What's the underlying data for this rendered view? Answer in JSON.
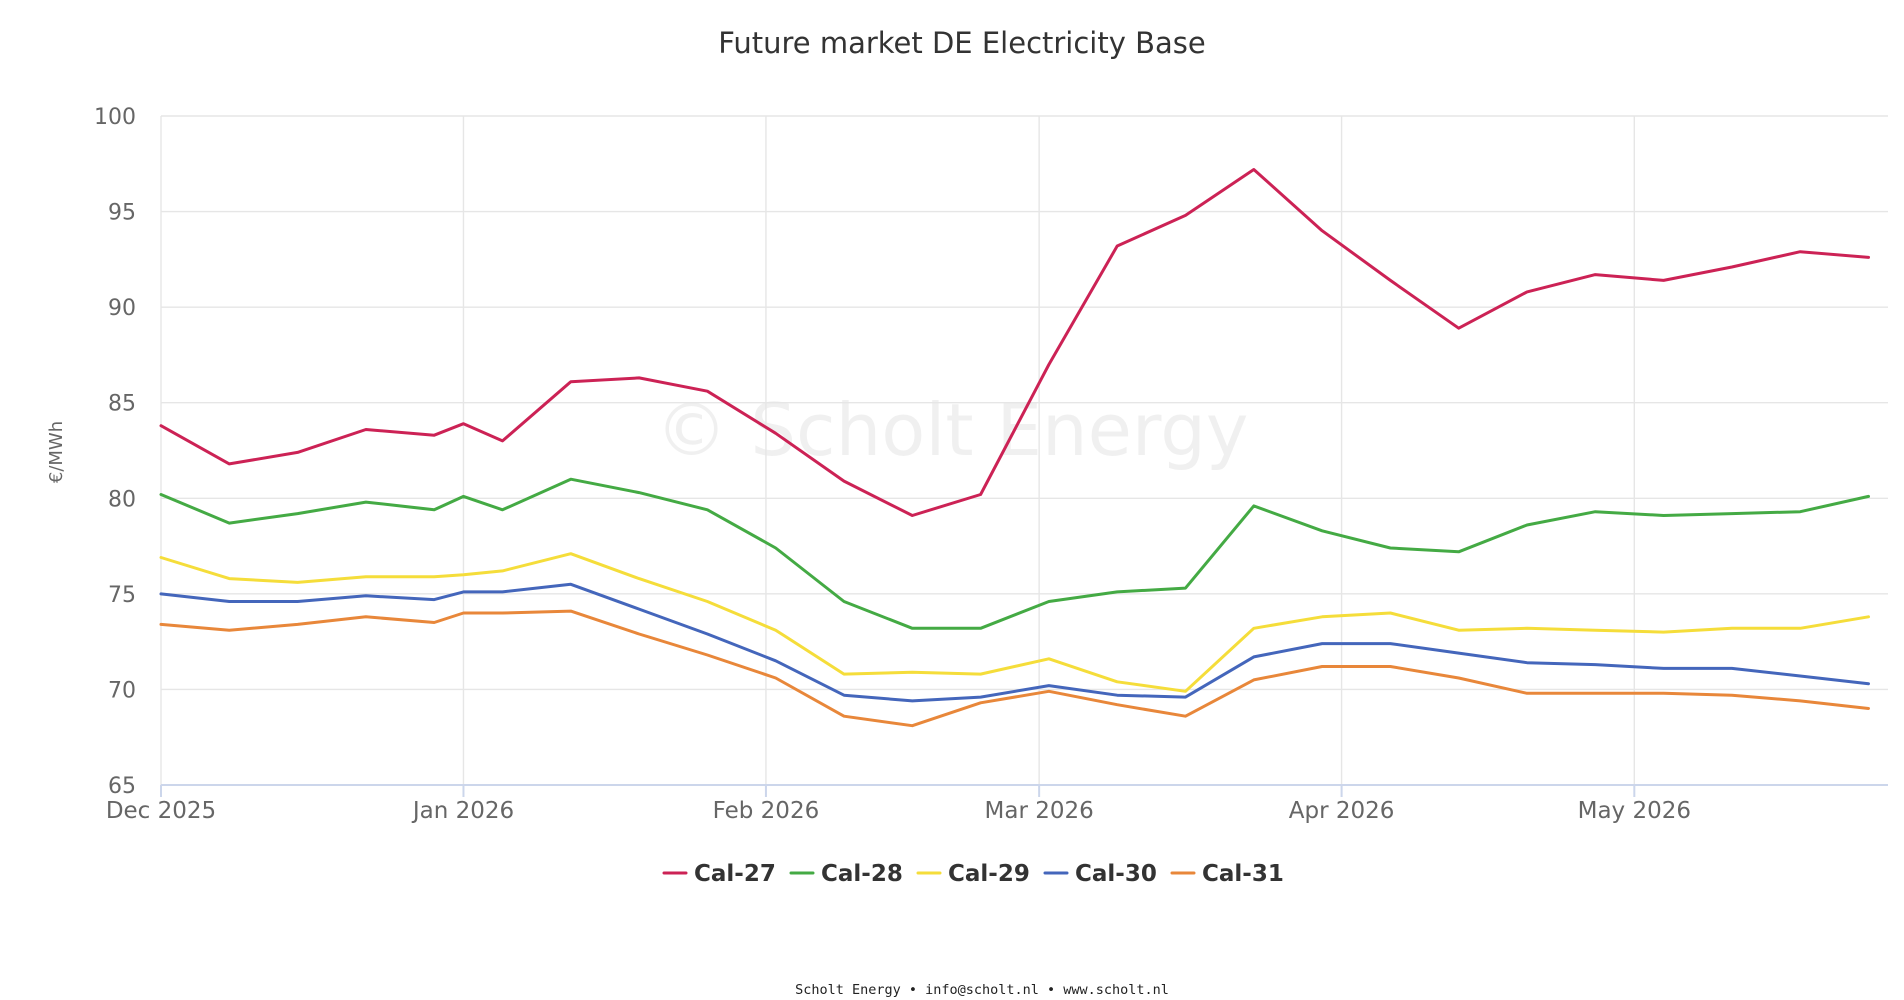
{
  "chart_data": {
    "type": "line",
    "title": "Future market DE Electricity Base",
    "ylabel": "€/MWh",
    "xlabel": "",
    "ylim": [
      65,
      100
    ],
    "yticks": [
      "65",
      "70",
      "75",
      "80",
      "85",
      "90",
      "95",
      "100"
    ],
    "xlim": [
      "2025-12-01",
      "2026-05-27"
    ],
    "xticks": [
      {
        "date": "2025-12-01",
        "label": "Dec 2025"
      },
      {
        "date": "2026-01-01",
        "label": "Jan 2026"
      },
      {
        "date": "2026-02-01",
        "label": "Feb 2026"
      },
      {
        "date": "2026-03-01",
        "label": "Mar 2026"
      },
      {
        "date": "2026-04-01",
        "label": "Apr 2026"
      },
      {
        "date": "2026-05-01",
        "label": "May 2026"
      }
    ],
    "grid": true,
    "legend_position": "bottom-center",
    "watermark": "© Scholt Energy",
    "x": [
      "2025-12-01",
      "2025-12-08",
      "2025-12-15",
      "2025-12-22",
      "2025-12-29",
      "2026-01-01",
      "2026-01-05",
      "2026-01-12",
      "2026-01-19",
      "2026-01-26",
      "2026-02-02",
      "2026-02-09",
      "2026-02-16",
      "2026-02-23",
      "2026-03-02",
      "2026-03-09",
      "2026-03-16",
      "2026-03-23",
      "2026-03-30",
      "2026-04-06",
      "2026-04-13",
      "2026-04-20",
      "2026-04-27",
      "2026-05-04",
      "2026-05-11",
      "2026-05-18",
      "2026-05-25"
    ],
    "series": [
      {
        "name": "Cal-27",
        "color": "#cc2255",
        "values": [
          83.8,
          81.8,
          82.4,
          83.6,
          83.3,
          83.9,
          83.0,
          86.1,
          86.3,
          85.6,
          83.4,
          80.9,
          79.1,
          80.2,
          87.0,
          93.2,
          94.8,
          97.2,
          94.0,
          91.4,
          88.9,
          90.8,
          91.7,
          91.4,
          92.1,
          92.9,
          92.6
        ]
      },
      {
        "name": "Cal-28",
        "color": "#44aa44",
        "values": [
          80.2,
          78.7,
          79.2,
          79.8,
          79.4,
          80.1,
          79.4,
          81.0,
          80.3,
          79.4,
          77.4,
          74.6,
          73.2,
          73.2,
          74.6,
          75.1,
          75.3,
          79.6,
          78.3,
          77.4,
          77.2,
          78.6,
          79.3,
          79.1,
          79.2,
          79.3,
          80.1
        ]
      },
      {
        "name": "Cal-29",
        "color": "#f5dd3a",
        "values": [
          76.9,
          75.8,
          75.6,
          75.9,
          75.9,
          76.0,
          76.2,
          77.1,
          75.8,
          74.6,
          73.1,
          70.8,
          70.9,
          70.8,
          71.6,
          70.4,
          69.9,
          73.2,
          73.8,
          74.0,
          73.1,
          73.2,
          73.1,
          73.0,
          73.2,
          73.2,
          73.8
        ]
      },
      {
        "name": "Cal-30",
        "color": "#4466bb",
        "values": [
          75.0,
          74.6,
          74.6,
          74.9,
          74.7,
          75.1,
          75.1,
          75.5,
          74.2,
          72.9,
          71.5,
          69.7,
          69.4,
          69.6,
          70.2,
          69.7,
          69.6,
          71.7,
          72.4,
          72.4,
          71.9,
          71.4,
          71.3,
          71.1,
          71.1,
          70.7,
          70.3
        ]
      },
      {
        "name": "Cal-31",
        "color": "#e8873a",
        "values": [
          73.4,
          73.1,
          73.4,
          73.8,
          73.5,
          74.0,
          74.0,
          74.1,
          72.9,
          71.8,
          70.6,
          68.6,
          68.1,
          69.3,
          69.9,
          69.2,
          68.6,
          70.5,
          71.2,
          71.2,
          70.6,
          69.8,
          69.8,
          69.8,
          69.7,
          69.4,
          69.0
        ]
      }
    ]
  },
  "footer": {
    "credits": "Scholt Energy • info@scholt.nl • www.scholt.nl"
  }
}
